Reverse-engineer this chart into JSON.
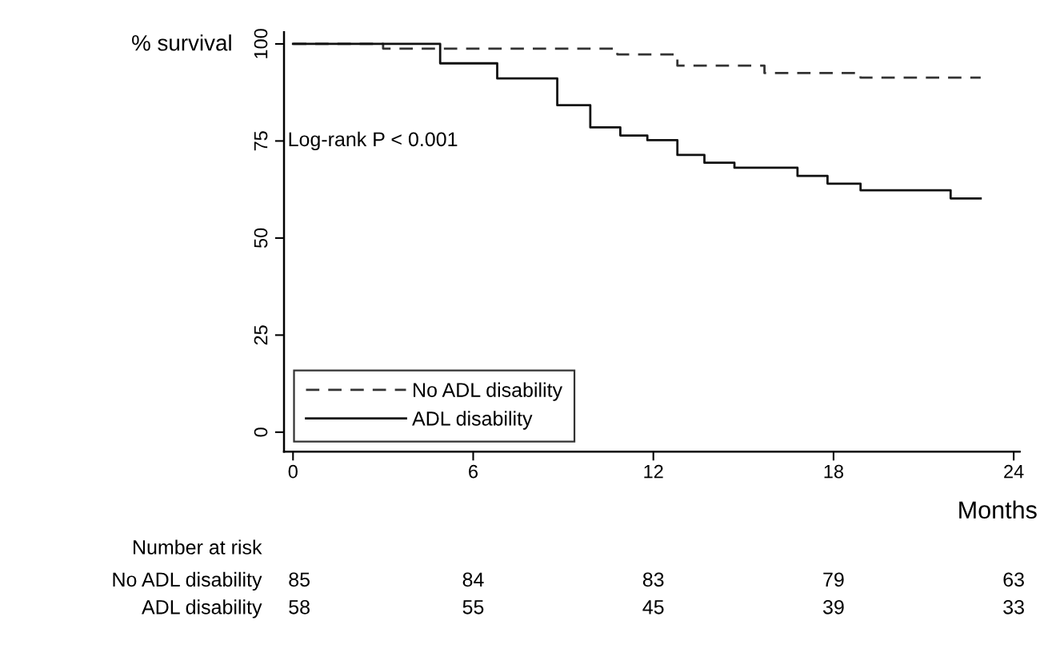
{
  "chart_data": {
    "type": "step",
    "ylabel": "% survival",
    "xlabel": "Months",
    "xlim": [
      -0.3,
      24.2
    ],
    "ylim": [
      -5,
      103
    ],
    "xticks": [
      0,
      6,
      12,
      18,
      24
    ],
    "yticks": [
      0,
      25,
      50,
      75,
      100
    ],
    "legend": "bottom left",
    "grid": false,
    "marker": "none",
    "series": [
      {
        "name": "No ADL disability",
        "color": "#333333",
        "line_style": "dashed",
        "x": [
          0,
          3,
          10.8,
          12.8,
          15.7,
          18.9,
          22.9
        ],
        "values": [
          100,
          98.8,
          97.3,
          94.4,
          92.5,
          91.3,
          91.3
        ]
      },
      {
        "name": "ADL disability",
        "color": "#111111",
        "line_style": "solid",
        "x": [
          0,
          4.9,
          6.8,
          8.8,
          9.9,
          10.9,
          11.8,
          12.8,
          13.7,
          14.7,
          16.8,
          17.8,
          18.9,
          21.9,
          22.9
        ],
        "values": [
          100,
          95,
          91.1,
          84.2,
          78.5,
          76.4,
          75.2,
          71.4,
          69.4,
          68.1,
          66.0,
          64.0,
          62.3,
          60.2,
          60.2
        ]
      }
    ],
    "annotations": [
      "Log-rank P < 0.001",
      "Number at risk",
      "No ADL disability",
      "ADL disability",
      "85",
      "84",
      "83",
      "79",
      "63",
      "58",
      "55",
      "45",
      "39",
      "33"
    ]
  }
}
